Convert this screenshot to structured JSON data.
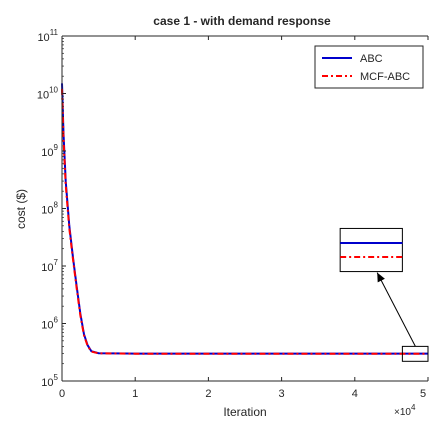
{
  "chart_data": {
    "type": "line",
    "title": "case 1 - with demand response",
    "xlabel": "Iteration",
    "ylabel": "cost ($)",
    "x_multiplier_label": "×10",
    "x_multiplier_exp": "4",
    "xlim": [
      0,
      50000
    ],
    "ylim": [
      100000,
      100000000000
    ],
    "yscale": "log",
    "grid": false,
    "legend_location": "top-right",
    "xticks": [
      {
        "value": 0,
        "label": "0"
      },
      {
        "value": 10000,
        "label": "1"
      },
      {
        "value": 20000,
        "label": "2"
      },
      {
        "value": 30000,
        "label": "3"
      },
      {
        "value": 40000,
        "label": "4"
      },
      {
        "value": 50000,
        "label": "5"
      }
    ],
    "yticks": [
      {
        "value": 100000,
        "base": "10",
        "exp": "5"
      },
      {
        "value": 1000000,
        "base": "10",
        "exp": "6"
      },
      {
        "value": 10000000,
        "base": "10",
        "exp": "7"
      },
      {
        "value": 100000000,
        "base": "10",
        "exp": "8"
      },
      {
        "value": 1000000000,
        "base": "10",
        "exp": "9"
      },
      {
        "value": 10000000000,
        "base": "10",
        "exp": "10"
      },
      {
        "value": 100000000000,
        "base": "10",
        "exp": "11"
      }
    ],
    "series": [
      {
        "name": "ABC",
        "color": "#0000cc",
        "style": "solid",
        "x": [
          0,
          200,
          500,
          1000,
          1500,
          2000,
          2500,
          3000,
          3500,
          4000,
          5000,
          10000,
          20000,
          30000,
          40000,
          50000
        ],
        "y": [
          15000000000,
          2000000000,
          300000000,
          50000000,
          14000000,
          4500000,
          1500000,
          650000,
          420000,
          330000,
          305000,
          300000,
          300000,
          300000,
          300000,
          300000
        ]
      },
      {
        "name": "MCF-ABC",
        "color": "#ff0000",
        "style": "dashdot",
        "x": [
          0,
          200,
          500,
          1000,
          1500,
          2000,
          2500,
          3000,
          3500,
          4000,
          5000,
          10000,
          20000,
          30000,
          40000,
          50000
        ],
        "y": [
          12000000000,
          1600000000,
          260000000,
          45000000,
          13000000,
          4200000,
          1400000,
          620000,
          410000,
          325000,
          303000,
          298000,
          298000,
          298000,
          298000,
          298000
        ]
      }
    ],
    "annotation": {
      "zoom_region_x": [
        46500,
        50000
      ],
      "zoom_region_y": [
        220000,
        400000
      ],
      "zoom_box_x": [
        38000,
        46500
      ],
      "zoom_box_y": [
        8000000,
        45000000
      ],
      "arrow": true
    }
  }
}
